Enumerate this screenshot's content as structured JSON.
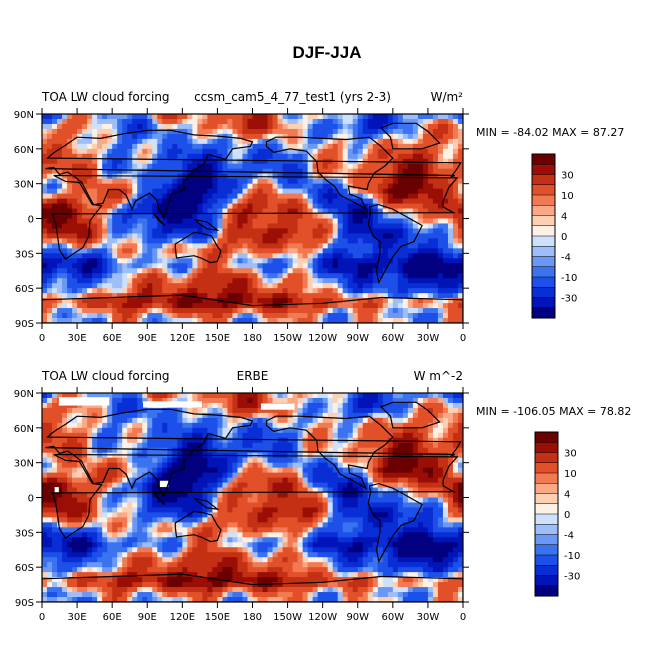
{
  "main_title": "DJF-JJA",
  "colors": {
    "levels": [
      "#000080",
      "#0014b8",
      "#0a2ed6",
      "#1c50e8",
      "#3a72f0",
      "#6a98f4",
      "#9dbef8",
      "#cfe0fb",
      "#fdf0e4",
      "#fdd0b4",
      "#fba886",
      "#f27a52",
      "#e2502a",
      "#c43014",
      "#9a0e06",
      "#6a0000"
    ],
    "coast": "#000000"
  },
  "chart_data": [
    {
      "type": "heatmap",
      "title_left": "TOA LW cloud forcing",
      "title_center": "ccsm_cam5_4_77_test1 (yrs 2-3)",
      "title_right": "W/m²",
      "stats": "MIN = -84.02  MAX =  87.27",
      "min": -84.02,
      "max": 87.27,
      "colorbar_labels": [
        "30",
        "10",
        "4",
        "0",
        "-4",
        "-10",
        "-30"
      ],
      "xlabel": "",
      "ylabel": "",
      "x_ticks": [
        "0",
        "30E",
        "60E",
        "90E",
        "120E",
        "150E",
        "180",
        "150W",
        "120W",
        "90W",
        "60W",
        "30W",
        "0"
      ],
      "y_ticks": [
        "90N",
        "60N",
        "30N",
        "0",
        "30S",
        "60S",
        "90S"
      ],
      "xlim": [
        0,
        360
      ],
      "ylim": [
        -90,
        90
      ]
    },
    {
      "type": "heatmap",
      "title_left": "TOA LW cloud forcing",
      "title_center": "ERBE",
      "title_right": "W m^-2",
      "stats": "MIN = -106.05 MAX =  78.82",
      "min": -106.05,
      "max": 78.82,
      "colorbar_labels": [
        "30",
        "10",
        "4",
        "0",
        "-4",
        "-10",
        "-30"
      ],
      "xlabel": "",
      "ylabel": "",
      "x_ticks": [
        "0",
        "30E",
        "60E",
        "90E",
        "120E",
        "150E",
        "180",
        "150W",
        "120W",
        "90W",
        "60W",
        "30W",
        "0"
      ],
      "y_ticks": [
        "90N",
        "60N",
        "30N",
        "0",
        "30S",
        "60S",
        "90S"
      ],
      "xlim": [
        0,
        360
      ],
      "ylim": [
        -90,
        90
      ]
    }
  ]
}
